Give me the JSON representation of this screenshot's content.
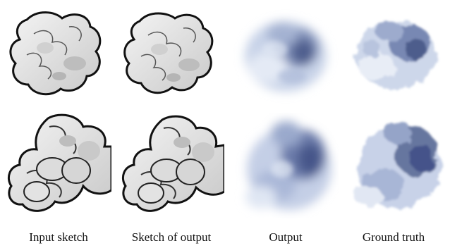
{
  "figure": {
    "columns": [
      {
        "label": "Input sketch"
      },
      {
        "label": "Sketch of output"
      },
      {
        "label": "Output"
      },
      {
        "label": "Ground truth"
      }
    ]
  }
}
